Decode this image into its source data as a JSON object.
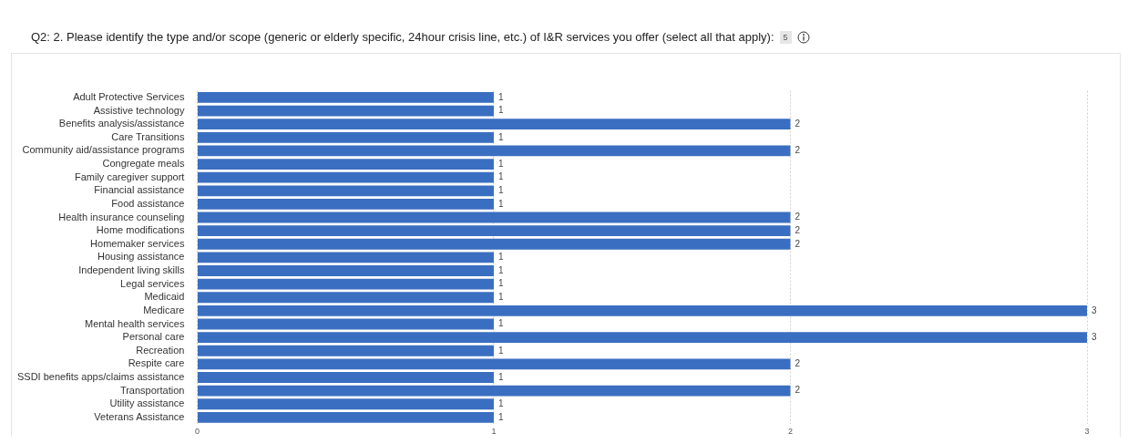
{
  "chart_data": {
    "type": "bar",
    "orientation": "horizontal",
    "title": "Q2: 2. Please identify the type and/or scope (generic or elderly specific, 24hour crisis line, etc.) of I&R services you offer (select all that apply):",
    "annotations": [
      "5"
    ],
    "categories": [
      "Adult Protective Services",
      "Assistive technology",
      "Benefits analysis/assistance",
      "Care Transitions",
      "Community aid/assistance programs",
      "Congregate meals",
      "Family caregiver support",
      "Financial assistance",
      "Food assistance",
      "Health insurance counseling",
      "Home modifications",
      "Homemaker services",
      "Housing assistance",
      "Independent living skills",
      "Legal services",
      "Medicaid",
      "Medicare",
      "Mental health services",
      "Personal care",
      "Recreation",
      "Respite care",
      "SSDI benefits apps/claims assistance",
      "Transportation",
      "Utility assistance",
      "Veterans Assistance"
    ],
    "values": [
      1,
      1,
      2,
      1,
      2,
      1,
      1,
      1,
      1,
      2,
      2,
      2,
      1,
      1,
      1,
      1,
      3,
      1,
      3,
      1,
      2,
      1,
      2,
      1,
      1
    ],
    "color": "#3a6ec0",
    "xlim": [
      0,
      3
    ],
    "xticks": [
      0,
      1,
      2,
      3
    ],
    "grid": "x",
    "data_labels": true,
    "legend": false
  }
}
